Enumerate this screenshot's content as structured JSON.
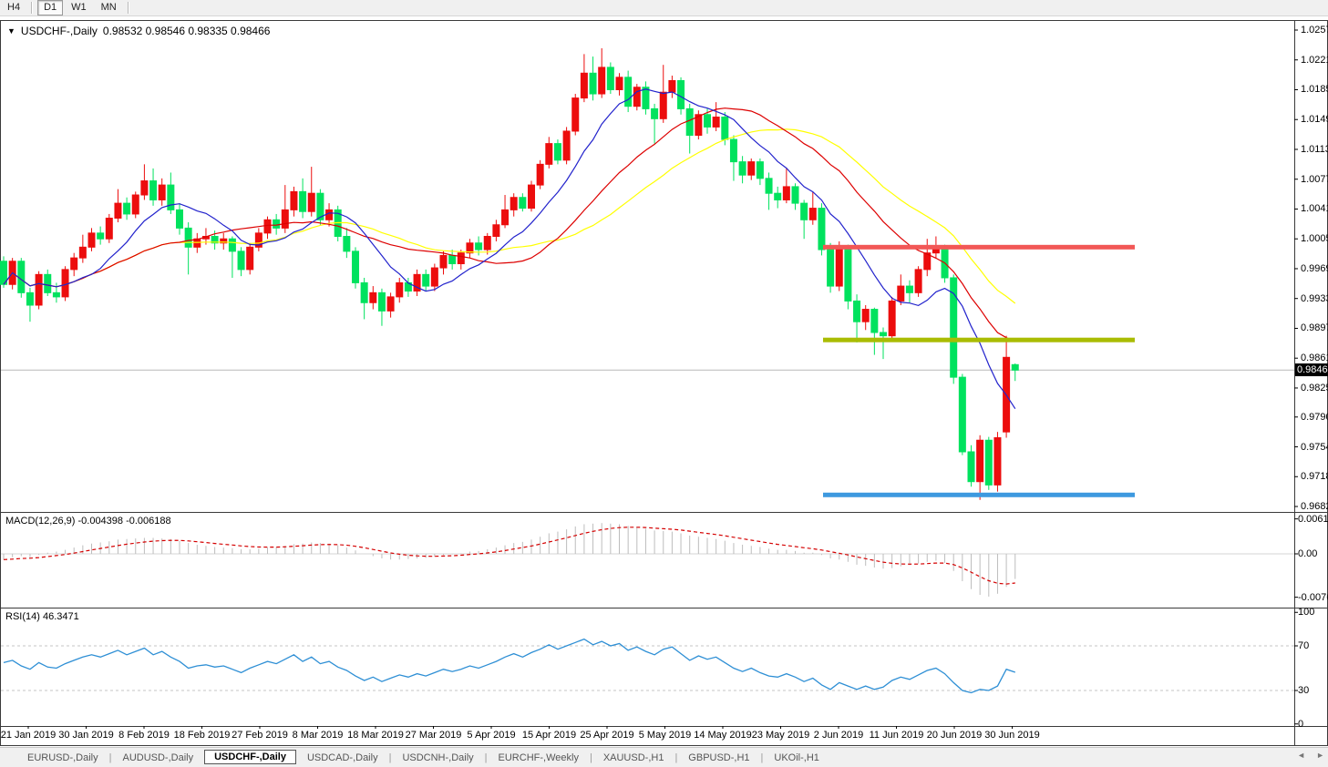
{
  "toolbar": {
    "timeframes": [
      {
        "label": "H4",
        "active": false
      },
      {
        "label": "D1",
        "active": true
      },
      {
        "label": "W1",
        "active": false
      },
      {
        "label": "MN",
        "active": false
      }
    ]
  },
  "window": {
    "title": {
      "symbol": "USDCHF-,Daily",
      "ohlc_text": "0.98532 0.98546 0.98335 0.98466",
      "dropdown_icon": "▼"
    },
    "price_axis": {
      "labels": [
        "1.02570",
        "1.02210",
        "1.01850",
        "1.01490",
        "1.01130",
        "1.00770",
        "1.00410",
        "1.00050",
        "0.99690",
        "0.99330",
        "0.98970",
        "0.98610",
        "0.98250",
        "0.97900",
        "0.97540",
        "0.97180",
        "0.96820"
      ],
      "current_price": "0.98466"
    },
    "date_axis": {
      "labels": [
        "21 Jan 2019",
        "30 Jan 2019",
        "8 Feb 2019",
        "18 Feb 2019",
        "27 Feb 2019",
        "8 Mar 2019",
        "18 Mar 2019",
        "27 Mar 2019",
        "5 Apr 2019",
        "15 Apr 2019",
        "25 Apr 2019",
        "5 May 2019",
        "14 May 2019",
        "23 May 2019",
        "2 Jun 2019",
        "11 Jun 2019",
        "20 Jun 2019",
        "30 Jun 2019"
      ]
    },
    "macd_panel": {
      "name": "MACD(12,26,9)",
      "values_text": "-0.004398 -0.006188",
      "axis": [
        "0.00613",
        "0.00",
        "-0.00761"
      ]
    },
    "rsi_panel": {
      "name": "RSI(14)",
      "value_text": "46.3471",
      "axis": [
        "100",
        "70",
        "30",
        "0"
      ]
    }
  },
  "tabs": {
    "items": [
      {
        "label": "EURUSD-,Daily",
        "active": false
      },
      {
        "label": "AUDUSD-,Daily",
        "active": false
      },
      {
        "label": "USDCHF-,Daily",
        "active": true
      },
      {
        "label": "USDCAD-,Daily",
        "active": false
      },
      {
        "label": "USDCNH-,Daily",
        "active": false
      },
      {
        "label": "EURCHF-,Weekly",
        "active": false
      },
      {
        "label": "XAUUSD-,H1",
        "active": false
      },
      {
        "label": "GBPUSD-,H1",
        "active": false
      },
      {
        "label": "UKOil-,H1",
        "active": false
      }
    ],
    "scroll_left_icon": "◄",
    "scroll_right_icon": "►"
  },
  "colors": {
    "candle_bull": "#ec0d0d",
    "candle_bear": "#00e25e",
    "ma_fast": "#2222cc",
    "ma_mid": "#dd0000",
    "ma_slow": "#ffff00",
    "hline_red": "#f25756",
    "hline_olive": "#a9bc03",
    "hline_blue": "#3e99df",
    "macd_hist": "#bdbdbd",
    "macd_signal": "#d40000",
    "rsi_line": "#2e8fd5",
    "grid": "#c4c4c4",
    "frame": "#3a3a3a",
    "price_line": "#b8b8b8"
  },
  "chart_data": {
    "type": "candlestick",
    "symbol": "USDCHF",
    "period": "Daily",
    "title": "USDCHF-,Daily",
    "last_ohlc": {
      "open": 0.98532,
      "high": 0.98546,
      "low": 0.98335,
      "close": 0.98466
    },
    "price_axis_range": {
      "top": 1.0257,
      "bottom": 0.9682,
      "tick_step": 0.0036
    },
    "x_labels": [
      "21 Jan 2019",
      "30 Jan 2019",
      "8 Feb 2019",
      "18 Feb 2019",
      "27 Feb 2019",
      "8 Mar 2019",
      "18 Mar 2019",
      "27 Mar 2019",
      "5 Apr 2019",
      "15 Apr 2019",
      "25 Apr 2019",
      "5 May 2019",
      "14 May 2019",
      "23 May 2019",
      "2 Jun 2019",
      "11 Jun 2019",
      "20 Jun 2019",
      "30 Jun 2019"
    ],
    "ohlc": [
      [
        0.9978,
        0.9984,
        0.9946,
        0.995
      ],
      [
        0.995,
        0.9982,
        0.9944,
        0.9978
      ],
      [
        0.9978,
        0.9982,
        0.9934,
        0.994
      ],
      [
        0.994,
        0.9946,
        0.9905,
        0.9925
      ],
      [
        0.9925,
        0.9966,
        0.992,
        0.9962
      ],
      [
        0.9962,
        0.9968,
        0.9936,
        0.994
      ],
      [
        0.994,
        0.9952,
        0.9928,
        0.9935
      ],
      [
        0.9935,
        0.9972,
        0.993,
        0.9968
      ],
      [
        0.9968,
        0.9988,
        0.996,
        0.9982
      ],
      [
        0.9982,
        1.001,
        0.9976,
        0.9995
      ],
      [
        0.9995,
        1.0018,
        0.999,
        1.0012
      ],
      [
        1.0012,
        1.002,
        0.9998,
        1.0005
      ],
      [
        1.0005,
        1.0035,
        1.0,
        1.003
      ],
      [
        1.003,
        1.0065,
        1.0025,
        1.0048
      ],
      [
        1.0048,
        1.0055,
        1.0028,
        1.0035
      ],
      [
        1.0035,
        1.0062,
        1.003,
        1.0058
      ],
      [
        1.0058,
        1.0095,
        1.0052,
        1.0075
      ],
      [
        1.0075,
        1.009,
        1.0045,
        1.0052
      ],
      [
        1.0052,
        1.0078,
        1.0045,
        1.007
      ],
      [
        1.007,
        1.0085,
        1.0035,
        1.004
      ],
      [
        1.004,
        1.0048,
        1.001,
        1.0018
      ],
      [
        1.0018,
        1.0025,
        0.9962,
        0.9995
      ],
      [
        0.9995,
        1.0012,
        0.9988,
        1.0005
      ],
      [
        1.0005,
        1.0018,
        0.9998,
        1.0008
      ],
      [
        1.0008,
        1.0015,
        0.9992,
        1.0
      ],
      [
        1.0,
        1.0012,
        0.9992,
        1.0005
      ],
      [
        1.0005,
        1.0008,
        0.9958,
        0.999
      ],
      [
        0.999,
        0.9995,
        0.996,
        0.9968
      ],
      [
        0.9968,
        1.0,
        0.9962,
        0.9995
      ],
      [
        0.9995,
        1.0018,
        0.999,
        1.0012
      ],
      [
        1.0012,
        1.0032,
        1.0005,
        1.0028
      ],
      [
        1.0028,
        1.0035,
        1.001,
        1.0018
      ],
      [
        1.0018,
        1.007,
        1.0012,
        1.004
      ],
      [
        1.004,
        1.0068,
        1.0032,
        1.0062
      ],
      [
        1.0062,
        1.0078,
        1.003,
        1.0038
      ],
      [
        1.0038,
        1.0092,
        1.0032,
        1.006
      ],
      [
        1.006,
        1.0065,
        1.0022,
        1.0028
      ],
      [
        1.0028,
        1.0048,
        1.002,
        1.004
      ],
      [
        1.004,
        1.0045,
        1.0002,
        1.0008
      ],
      [
        1.0008,
        1.0018,
        0.9982,
        0.999
      ],
      [
        0.999,
        0.9995,
        0.9945,
        0.9952
      ],
      [
        0.9952,
        0.9958,
        0.9908,
        0.9928
      ],
      [
        0.9928,
        0.9948,
        0.992,
        0.994
      ],
      [
        0.994,
        0.9945,
        0.99,
        0.9918
      ],
      [
        0.9918,
        0.994,
        0.991,
        0.9935
      ],
      [
        0.9935,
        0.9958,
        0.9928,
        0.9952
      ],
      [
        0.9952,
        0.9958,
        0.9935,
        0.9942
      ],
      [
        0.9942,
        0.9968,
        0.9936,
        0.9962
      ],
      [
        0.9962,
        0.9968,
        0.9942,
        0.9948
      ],
      [
        0.9948,
        0.9975,
        0.9942,
        0.997
      ],
      [
        0.997,
        0.999,
        0.9962,
        0.9985
      ],
      [
        0.9985,
        0.9992,
        0.9968,
        0.9975
      ],
      [
        0.9975,
        0.9992,
        0.9968,
        0.9988
      ],
      [
        0.9988,
        1.0005,
        0.9982,
        1.0
      ],
      [
        1.0,
        1.0008,
        0.9985,
        0.9992
      ],
      [
        0.9992,
        1.0012,
        0.9986,
        1.0008
      ],
      [
        1.0008,
        1.0028,
        1.0002,
        1.0022
      ],
      [
        1.0022,
        1.0058,
        1.0018,
        1.004
      ],
      [
        1.004,
        1.006,
        1.0032,
        1.0055
      ],
      [
        1.0055,
        1.006,
        1.0038,
        1.0042
      ],
      [
        1.0042,
        1.0075,
        1.0038,
        1.007
      ],
      [
        1.007,
        1.01,
        1.0065,
        1.0095
      ],
      [
        1.0095,
        1.0128,
        1.009,
        1.012
      ],
      [
        1.012,
        1.0125,
        1.0095,
        1.01
      ],
      [
        1.01,
        1.014,
        1.0095,
        1.0135
      ],
      [
        1.0135,
        1.018,
        1.013,
        1.0175
      ],
      [
        1.0175,
        1.0228,
        1.017,
        1.0205
      ],
      [
        1.0205,
        1.0225,
        1.0172,
        1.018
      ],
      [
        1.018,
        1.0235,
        1.0175,
        1.0212
      ],
      [
        1.0212,
        1.0218,
        1.018,
        1.0185
      ],
      [
        1.0185,
        1.0205,
        1.0178,
        1.02
      ],
      [
        1.02,
        1.0208,
        1.0158,
        1.0165
      ],
      [
        1.0165,
        1.0192,
        1.016,
        1.0188
      ],
      [
        1.0188,
        1.0195,
        1.0155,
        1.0162
      ],
      [
        1.0162,
        1.0168,
        1.012,
        1.015
      ],
      [
        1.015,
        1.0215,
        1.0145,
        1.0182
      ],
      [
        1.0182,
        1.0202,
        1.0175,
        1.0196
      ],
      [
        1.0196,
        1.02,
        1.0155,
        1.0162
      ],
      [
        1.0162,
        1.0168,
        1.0108,
        1.013
      ],
      [
        1.013,
        1.016,
        1.0125,
        1.0155
      ],
      [
        1.0155,
        1.0162,
        1.0132,
        1.014
      ],
      [
        1.014,
        1.017,
        1.0135,
        1.0152
      ],
      [
        1.0152,
        1.0158,
        1.0118,
        1.0125
      ],
      [
        1.0125,
        1.013,
        1.0075,
        1.0098
      ],
      [
        1.0098,
        1.0105,
        1.0072,
        1.0082
      ],
      [
        1.0082,
        1.0102,
        1.0076,
        1.0098
      ],
      [
        1.0098,
        1.0102,
        1.007,
        1.0078
      ],
      [
        1.0078,
        1.0085,
        1.004,
        1.006
      ],
      [
        1.006,
        1.0068,
        1.0042,
        1.0052
      ],
      [
        1.0052,
        1.009,
        1.0048,
        1.0068
      ],
      [
        1.0068,
        1.0072,
        1.004,
        1.0048
      ],
      [
        1.0048,
        1.0052,
        1.0005,
        1.0028
      ],
      [
        1.0028,
        1.0062,
        1.0022,
        1.0042
      ],
      [
        1.0042,
        1.0048,
        0.9985,
        0.9992
      ],
      [
        0.9992,
        1.0,
        0.994,
        0.9948
      ],
      [
        0.9948,
        1.0002,
        0.9942,
        0.9995
      ],
      [
        0.9995,
        0.9998,
        0.992,
        0.993
      ],
      [
        0.993,
        0.9938,
        0.988,
        0.9905
      ],
      [
        0.9905,
        0.9925,
        0.9895,
        0.992
      ],
      [
        0.992,
        0.9922,
        0.9865,
        0.9892
      ],
      [
        0.9892,
        0.9898,
        0.986,
        0.9888
      ],
      [
        0.9888,
        0.9935,
        0.9882,
        0.993
      ],
      [
        0.993,
        0.9962,
        0.9925,
        0.9948
      ],
      [
        0.9948,
        0.9955,
        0.9928,
        0.994
      ],
      [
        0.994,
        0.9972,
        0.9935,
        0.9968
      ],
      [
        0.9968,
        1.0005,
        0.996,
        0.9988
      ],
      [
        0.9988,
        1.0008,
        0.9982,
        0.9995
      ],
      [
        0.9995,
        0.9998,
        0.9952,
        0.9958
      ],
      [
        0.9958,
        0.9962,
        0.983,
        0.9838
      ],
      [
        0.9838,
        0.9842,
        0.9744,
        0.9748
      ],
      [
        0.9748,
        0.9756,
        0.9706,
        0.9712
      ],
      [
        0.9712,
        0.9768,
        0.969,
        0.9762
      ],
      [
        0.9762,
        0.9766,
        0.9702,
        0.9708
      ],
      [
        0.9708,
        0.9772,
        0.97,
        0.9765
      ],
      [
        0.9772,
        0.9888,
        0.9765,
        0.9862
      ],
      [
        0.98532,
        0.98546,
        0.98335,
        0.98466
      ]
    ],
    "moving_averages": [
      {
        "name": "fast",
        "period": 9,
        "color": "#2222cc"
      },
      {
        "name": "mid",
        "period": 21,
        "color": "#dd0000"
      },
      {
        "name": "slow",
        "period": 30,
        "color": "#ffff00"
      }
    ],
    "hlines": [
      {
        "name": "resistance-red",
        "price": 0.9995,
        "color": "#f25756"
      },
      {
        "name": "support-olive",
        "price": 0.9883,
        "color": "#a9bc03"
      },
      {
        "name": "support-blue",
        "price": 0.9696,
        "color": "#3e99df"
      }
    ],
    "macd": {
      "main_value": -0.004398,
      "signal_value": -0.006188,
      "axis_top": 0.00613,
      "axis_bottom": -0.00761,
      "values": [
        -0.001,
        -0.0006,
        -0.0004,
        -0.0006,
        -0.0002,
        0.0002,
        0.0004,
        0.0007,
        0.0011,
        0.0015,
        0.0018,
        0.002,
        0.0022,
        0.0025,
        0.0026,
        0.0027,
        0.0028,
        0.0028,
        0.0027,
        0.0026,
        0.0023,
        0.0019,
        0.0016,
        0.0014,
        0.0012,
        0.0011,
        0.001,
        0.0008,
        0.0008,
        0.0009,
        0.0011,
        0.0012,
        0.0014,
        0.0017,
        0.0018,
        0.002,
        0.0019,
        0.0018,
        0.0015,
        0.0011,
        0.0006,
        0.0,
        -0.0004,
        -0.0008,
        -0.001,
        -0.001,
        -0.0009,
        -0.0008,
        -0.0007,
        -0.0005,
        -0.0002,
        -0.0001,
        0.0001,
        0.0004,
        0.0005,
        0.0008,
        0.0011,
        0.0015,
        0.0019,
        0.0021,
        0.0025,
        0.003,
        0.0036,
        0.0039,
        0.0043,
        0.0048,
        0.0052,
        0.0053,
        0.0054,
        0.0053,
        0.0052,
        0.0049,
        0.0047,
        0.0044,
        0.0041,
        0.004,
        0.0039,
        0.0036,
        0.0032,
        0.003,
        0.0028,
        0.0026,
        0.0023,
        0.0019,
        0.0016,
        0.0014,
        0.0012,
        0.0009,
        0.0007,
        0.0007,
        0.0005,
        0.0002,
        0.0002,
        -0.0002,
        -0.0008,
        -0.001,
        -0.0014,
        -0.0019,
        -0.0021,
        -0.0024,
        -0.0026,
        -0.0025,
        -0.0022,
        -0.002,
        -0.0017,
        -0.0014,
        -0.0012,
        -0.0016,
        -0.003,
        -0.0048,
        -0.0062,
        -0.0072,
        -0.0075,
        -0.007,
        -0.0058,
        -0.0044
      ]
    },
    "rsi": {
      "period": 14,
      "current": 46.3471,
      "levels": [
        70,
        30
      ],
      "values": [
        55,
        57,
        52,
        49,
        55,
        51,
        50,
        54,
        57,
        60,
        62,
        60,
        63,
        66,
        62,
        65,
        68,
        62,
        65,
        60,
        56,
        50,
        52,
        53,
        51,
        52,
        49,
        46,
        50,
        53,
        56,
        54,
        58,
        62,
        56,
        60,
        54,
        56,
        51,
        48,
        43,
        39,
        42,
        38,
        41,
        44,
        42,
        45,
        43,
        46,
        49,
        47,
        49,
        52,
        50,
        53,
        56,
        60,
        63,
        60,
        64,
        67,
        71,
        67,
        70,
        73,
        76,
        71,
        74,
        70,
        72,
        66,
        69,
        65,
        62,
        67,
        69,
        63,
        57,
        61,
        58,
        60,
        55,
        50,
        47,
        50,
        46,
        43,
        42,
        45,
        42,
        38,
        41,
        35,
        31,
        37,
        34,
        31,
        34,
        31,
        33,
        39,
        42,
        40,
        44,
        48,
        50,
        45,
        37,
        30,
        28,
        31,
        30,
        34,
        49,
        46.35
      ]
    }
  }
}
